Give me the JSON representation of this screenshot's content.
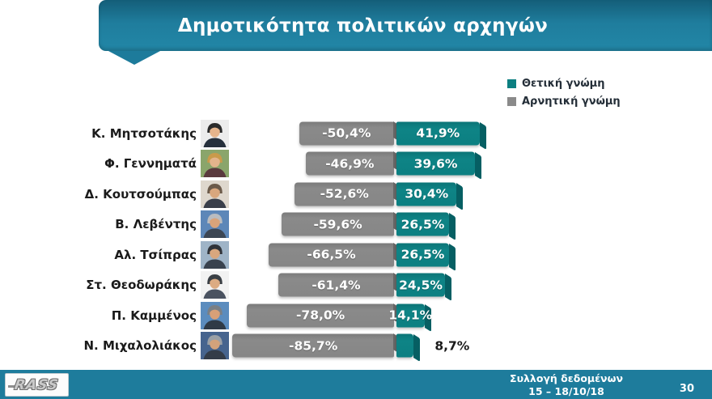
{
  "title": "Δημοτικότητα πολιτικών αρχηγών",
  "legend": {
    "positive": "Θετική γνώμη",
    "negative": "Αρνητική γνώμη"
  },
  "colors": {
    "positive_bar": "#0c7f81",
    "negative_bar": "#868686",
    "banner": "#1f7d9d",
    "footer": "#1e7c9c"
  },
  "chart_data": {
    "type": "bar",
    "orientation": "horizontal-diverging",
    "title": "Δημοτικότητα πολιτικών αρχηγών",
    "categories": [
      "Κ. Μητσοτάκης",
      "Φ. Γεννηματά",
      "Δ. Κουτσούμπας",
      "Β. Λεβέντης",
      "Αλ. Τσίπρας",
      "Στ. Θεοδωράκης",
      "Π. Καμμένος",
      "Ν. Μιχαλολιάκος"
    ],
    "series": [
      {
        "name": "Θετική γνώμη",
        "color": "#0c7f81",
        "values": [
          41.9,
          39.6,
          30.4,
          26.5,
          26.5,
          24.5,
          14.1,
          8.7
        ]
      },
      {
        "name": "Αρνητική γνώμη",
        "color": "#868686",
        "values": [
          -50.4,
          -46.9,
          -52.6,
          -59.6,
          -66.5,
          -61.4,
          -78.0,
          -85.7
        ]
      }
    ],
    "value_labels": {
      "positive": [
        "41,9%",
        "39,6%",
        "30,4%",
        "26,5%",
        "26,5%",
        "24,5%",
        "14,1%",
        "8,7%"
      ],
      "negative": [
        "-50,4%",
        "-46,9%",
        "-52,6%",
        "-59,6%",
        "-66,5%",
        "-61,4%",
        "-78,0%",
        "-85,7%"
      ]
    },
    "xlim": [
      -100,
      55
    ],
    "grid": false,
    "legend_position": "top-right"
  },
  "avatars": [
    {
      "bg": "#ececec",
      "hair": "#2a2a2a",
      "skin": "#e5b48c",
      "suit": "#26303c"
    },
    {
      "bg": "#8aa56b",
      "hair": "#c99a4b",
      "skin": "#e3b48c",
      "suit": "#5a3a3e"
    },
    {
      "bg": "#ded7cd",
      "hair": "#6b5a4a",
      "skin": "#d9a77e",
      "suit": "#3a3f4a"
    },
    {
      "bg": "#5d87b8",
      "hair": "#b9bcc0",
      "skin": "#d8a37a",
      "suit": "#3c4654"
    },
    {
      "bg": "#9fb4c7",
      "hair": "#30343a",
      "skin": "#d9a77e",
      "suit": "#39424e"
    },
    {
      "bg": "#f2f2f2",
      "hair": "#3a3f45",
      "skin": "#dcab82",
      "suit": "#4a5260"
    },
    {
      "bg": "#5b8cbe",
      "hair": "#7a7f85",
      "skin": "#d8a077",
      "suit": "#2f3a46"
    },
    {
      "bg": "#46648e",
      "hair": "#9aa0a6",
      "skin": "#d3a27b",
      "suit": "#333c48"
    }
  ],
  "footer": {
    "logo": "RASS",
    "line1": "Συλλογή δεδομένων",
    "line2": "15 – 18/10/18",
    "page": "30"
  }
}
